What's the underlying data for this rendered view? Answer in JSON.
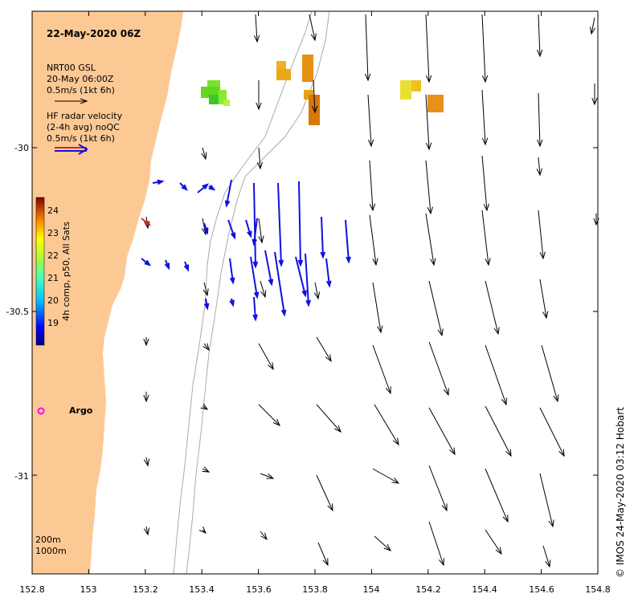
{
  "map": {
    "title": "22-May-2020 06Z",
    "credit": "© IMOS 24-May-2020 03:12 Hobart",
    "lon_range": [
      152.8,
      154.8
    ],
    "lat_range": [
      -31.3,
      -29.6
    ],
    "x_ticks": [
      "152.8",
      "153",
      "153.2",
      "153.4",
      "153.6",
      "153.8",
      "154",
      "154.2",
      "154.4",
      "154.6",
      "154.8"
    ],
    "y_ticks": [
      "-30",
      "-30.5",
      "-31"
    ]
  },
  "legend": {
    "gsl_title": "NRT00 GSL",
    "gsl_date": "20-May 06:00Z",
    "gsl_scale": "0.5m/s (1kt 6h)",
    "hf_title": "HF radar velocity",
    "hf_avg": "(2-4h avg) noQC",
    "hf_scale": "0.5m/s (1kt 6h)"
  },
  "colorbar": {
    "label": "4h comp, p50, All Sats",
    "ticks": [
      "24",
      "23",
      "22",
      "21",
      "20",
      "19"
    ]
  },
  "argo": {
    "label": "Argo"
  },
  "isobaths": {
    "shallow": "200m",
    "deep": "1000m"
  },
  "colors": {
    "land": "#fcc995",
    "hf_arrows": "#1010e0",
    "gsl_arrows": "#000000",
    "argo": "#ff00ff",
    "isobath": "#aaaaaa"
  }
}
